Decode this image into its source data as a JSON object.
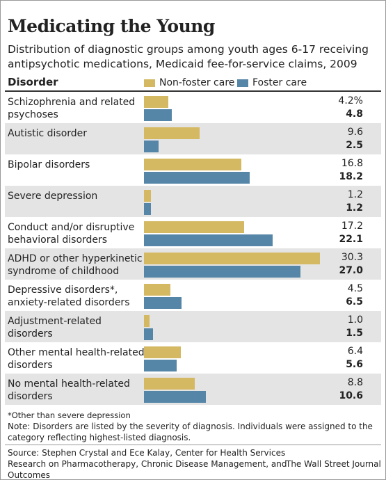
{
  "chart_data": {
    "type": "bar",
    "orientation": "horizontal",
    "title": "Medicating the Young",
    "subtitle": "Distribution of diagnostic groups among youth ages 6-17 receiving antipsychotic medications, Medicaid fee-for-service claims, 2009",
    "category_header": "Disorder",
    "categories": [
      "Schizophrenia and related\npsychoses",
      "Autistic disorder",
      "Bipolar disorders",
      "Severe depression",
      "Conduct and/or disruptive\nbehavioral disorders",
      "ADHD or other hyperkinetic\nsyndrome of childhood",
      "Depressive disorders*,\nanxiety-related disorders",
      "Adjustment-related\ndisorders",
      "Other mental health-related\ndisorders",
      "No mental health-related\ndisorders"
    ],
    "series": [
      {
        "name": "Non-foster care",
        "color": "#d4b862",
        "values": [
          4.2,
          9.6,
          16.8,
          1.2,
          17.2,
          30.3,
          4.5,
          1.0,
          6.4,
          8.8
        ],
        "value_labels": [
          "4.2%",
          "9.6",
          "16.8",
          "1.2",
          "17.2",
          "30.3",
          "4.5",
          "1.0",
          "6.4",
          "8.8"
        ]
      },
      {
        "name": "Foster care",
        "color": "#5586a8",
        "values": [
          4.8,
          2.5,
          18.2,
          1.2,
          22.1,
          27.0,
          6.5,
          1.5,
          5.6,
          10.6
        ],
        "value_labels": [
          "4.8",
          "2.5",
          "18.2",
          "1.2",
          "22.1",
          "27.0",
          "6.5",
          "1.5",
          "5.6",
          "10.6"
        ]
      }
    ],
    "footnote": "*Other than severe depression",
    "note": "Note: Disorders are listed by the severity of diagnosis. Individuals were assigned to the category reflecting highest-listed diagnosis.",
    "source": "Source: Stephen Crystal and Ece Kalay, Center for Health Services Research on Pharmacotherapy, Chronic Disease Management, and Outcomes",
    "credit": "The Wall Street Journal"
  }
}
